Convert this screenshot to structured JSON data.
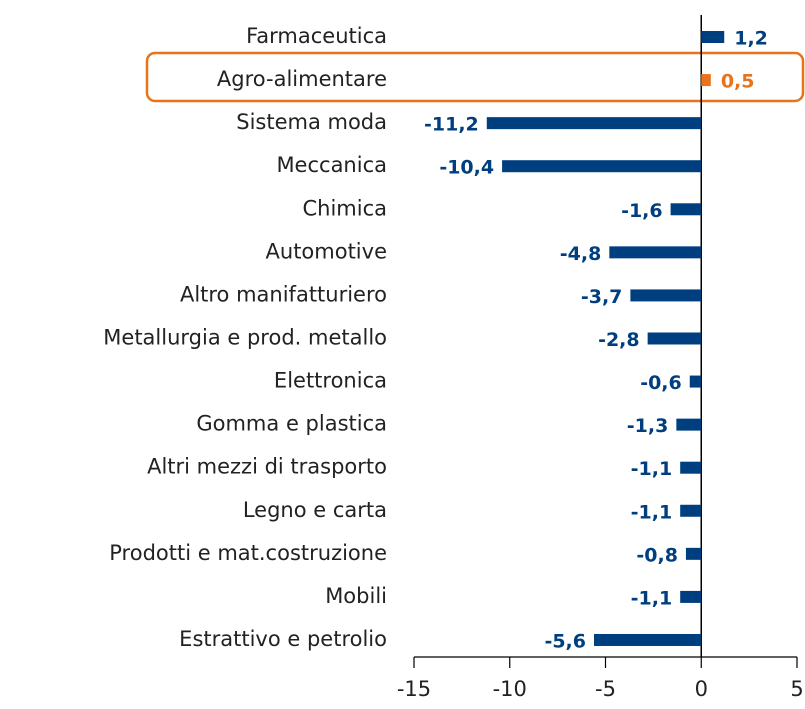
{
  "chart_data": {
    "type": "hbar",
    "categories": [
      "Farmaceutica",
      "Agro-alimentare",
      "Sistema moda",
      "Meccanica",
      "Chimica",
      "Automotive",
      "Altro manifatturiero",
      "Metallurgia e prod. metallo",
      "Elettronica",
      "Gomma e plastica",
      "Altri mezzi di trasporto",
      "Legno e carta",
      "Prodotti e mat.costruzione",
      "Mobili",
      "Estrattivo e petrolio"
    ],
    "values": [
      1.2,
      0.5,
      -11.2,
      -10.4,
      -1.6,
      -4.8,
      -3.7,
      -2.8,
      -0.6,
      -1.3,
      -1.1,
      -1.1,
      -0.8,
      -1.1,
      -5.6
    ],
    "value_labels": [
      "1,2",
      "0,5",
      "-11,2",
      "-10,4",
      "-1,6",
      "-4,8",
      "-3,7",
      "-2,8",
      "-0,6",
      "-1,3",
      "-1,1",
      "-1,1",
      "-0,8",
      "-1,1",
      "-5,6"
    ],
    "colors": [
      "#003f7f",
      "#e8731a",
      "#003f7f",
      "#003f7f",
      "#003f7f",
      "#003f7f",
      "#003f7f",
      "#003f7f",
      "#003f7f",
      "#003f7f",
      "#003f7f",
      "#003f7f",
      "#003f7f",
      "#003f7f",
      "#003f7f"
    ],
    "xlim": [
      -15,
      5
    ],
    "xticks": [
      -15,
      -10,
      -5,
      0,
      5
    ]
  }
}
